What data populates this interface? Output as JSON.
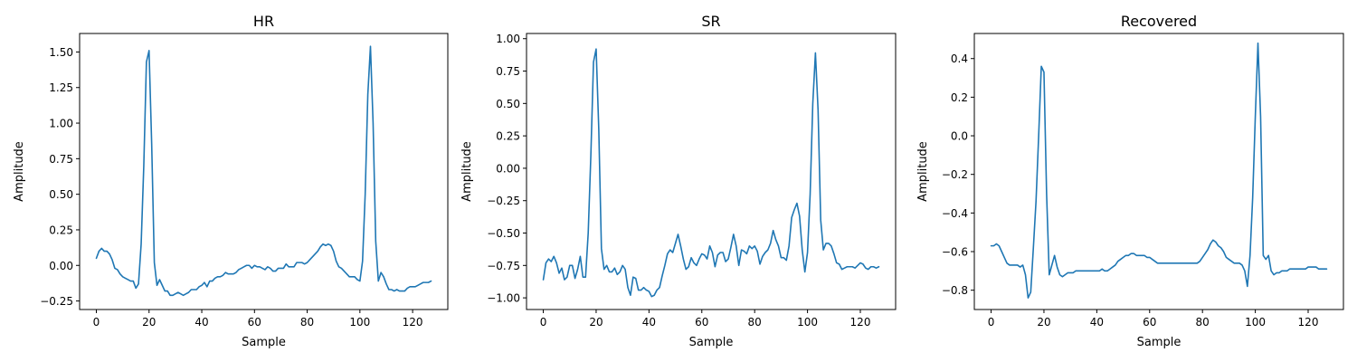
{
  "figure": {
    "background": "#ffffff",
    "line_color": "#1f77b4"
  },
  "chart_data": [
    {
      "type": "line",
      "title": "HR",
      "xlabel": "Sample",
      "ylabel": "Amplitude",
      "xlim": [
        -6.35,
        133.35
      ],
      "ylim": [
        -0.31,
        1.63
      ],
      "xticks": [
        0,
        20,
        40,
        60,
        80,
        100,
        120
      ],
      "xtick_labels": [
        "0",
        "20",
        "40",
        "60",
        "80",
        "100",
        "120"
      ],
      "yticks": [
        -0.25,
        0.0,
        0.25,
        0.5,
        0.75,
        1.0,
        1.25,
        1.5
      ],
      "ytick_labels": [
        "−0.25",
        "0.00",
        "0.25",
        "0.50",
        "0.75",
        "1.00",
        "1.25",
        "1.50"
      ],
      "grid": false,
      "series": [
        {
          "color": "#1f77b4",
          "x": [
            0,
            1,
            2,
            3,
            4,
            5,
            6,
            7,
            8,
            9,
            10,
            11,
            12,
            13,
            14,
            15,
            16,
            17,
            18,
            19,
            20,
            21,
            22,
            23,
            24,
            25,
            26,
            27,
            28,
            29,
            30,
            31,
            32,
            33,
            34,
            35,
            36,
            37,
            38,
            39,
            40,
            41,
            42,
            43,
            44,
            45,
            46,
            47,
            48,
            49,
            50,
            51,
            52,
            53,
            54,
            55,
            56,
            57,
            58,
            59,
            60,
            61,
            62,
            63,
            64,
            65,
            66,
            67,
            68,
            69,
            70,
            71,
            72,
            73,
            74,
            75,
            76,
            77,
            78,
            79,
            80,
            81,
            82,
            83,
            84,
            85,
            86,
            87,
            88,
            89,
            90,
            91,
            92,
            93,
            94,
            95,
            96,
            97,
            98,
            99,
            100,
            101,
            102,
            103,
            104,
            105,
            106,
            107,
            108,
            109,
            110,
            111,
            112,
            113,
            114,
            115,
            116,
            117,
            118,
            119,
            120,
            121,
            122,
            123,
            124,
            125,
            126,
            127
          ],
          "y": [
            0.05,
            0.1,
            0.12,
            0.1,
            0.1,
            0.08,
            0.04,
            -0.02,
            -0.03,
            -0.06,
            -0.08,
            -0.09,
            -0.1,
            -0.11,
            -0.11,
            -0.16,
            -0.13,
            0.15,
            0.7,
            1.43,
            1.51,
            0.85,
            0.02,
            -0.14,
            -0.1,
            -0.14,
            -0.18,
            -0.18,
            -0.21,
            -0.21,
            -0.2,
            -0.19,
            -0.2,
            -0.21,
            -0.2,
            -0.19,
            -0.17,
            -0.17,
            -0.17,
            -0.15,
            -0.14,
            -0.12,
            -0.15,
            -0.11,
            -0.11,
            -0.09,
            -0.08,
            -0.08,
            -0.07,
            -0.05,
            -0.06,
            -0.06,
            -0.06,
            -0.05,
            -0.03,
            -0.02,
            -0.01,
            0.0,
            0.0,
            -0.02,
            0.0,
            -0.01,
            -0.01,
            -0.02,
            -0.03,
            -0.01,
            -0.02,
            -0.04,
            -0.04,
            -0.02,
            -0.02,
            -0.02,
            0.01,
            -0.01,
            -0.01,
            -0.01,
            0.02,
            0.02,
            0.02,
            0.01,
            0.02,
            0.04,
            0.06,
            0.08,
            0.1,
            0.13,
            0.15,
            0.14,
            0.15,
            0.14,
            0.1,
            0.03,
            -0.01,
            -0.02,
            -0.04,
            -0.06,
            -0.08,
            -0.08,
            -0.08,
            -0.1,
            -0.11,
            0.03,
            0.5,
            1.2,
            1.54,
            1.0,
            0.17,
            -0.11,
            -0.05,
            -0.08,
            -0.13,
            -0.17,
            -0.17,
            -0.18,
            -0.17,
            -0.18,
            -0.18,
            -0.18,
            -0.16,
            -0.15,
            -0.15,
            -0.15,
            -0.14,
            -0.13,
            -0.12,
            -0.12,
            -0.12,
            -0.11
          ]
        }
      ]
    },
    {
      "type": "line",
      "title": "SR",
      "xlabel": "Sample",
      "ylabel": "Amplitude",
      "xlim": [
        -6.35,
        133.35
      ],
      "ylim": [
        -1.09,
        1.04
      ],
      "xticks": [
        0,
        20,
        40,
        60,
        80,
        100,
        120
      ],
      "xtick_labels": [
        "0",
        "20",
        "40",
        "60",
        "80",
        "100",
        "120"
      ],
      "yticks": [
        -1.0,
        -0.75,
        -0.5,
        -0.25,
        0.0,
        0.25,
        0.5,
        0.75,
        1.0
      ],
      "ytick_labels": [
        "−1.00",
        "−0.75",
        "−0.50",
        "−0.25",
        "0.00",
        "0.25",
        "0.50",
        "0.75",
        "1.00"
      ],
      "grid": false,
      "series": [
        {
          "color": "#1f77b4",
          "x": [
            0,
            1,
            2,
            3,
            4,
            5,
            6,
            7,
            8,
            9,
            10,
            11,
            12,
            13,
            14,
            15,
            16,
            17,
            18,
            19,
            20,
            21,
            22,
            23,
            24,
            25,
            26,
            27,
            28,
            29,
            30,
            31,
            32,
            33,
            34,
            35,
            36,
            37,
            38,
            39,
            40,
            41,
            42,
            43,
            44,
            45,
            46,
            47,
            48,
            49,
            50,
            51,
            52,
            53,
            54,
            55,
            56,
            57,
            58,
            59,
            60,
            61,
            62,
            63,
            64,
            65,
            66,
            67,
            68,
            69,
            70,
            71,
            72,
            73,
            74,
            75,
            76,
            77,
            78,
            79,
            80,
            81,
            82,
            83,
            84,
            85,
            86,
            87,
            88,
            89,
            90,
            91,
            92,
            93,
            94,
            95,
            96,
            97,
            98,
            99,
            100,
            101,
            102,
            103,
            104,
            105,
            106,
            107,
            108,
            109,
            110,
            111,
            112,
            113,
            114,
            115,
            116,
            117,
            118,
            119,
            120,
            121,
            122,
            123,
            124,
            125,
            126,
            127
          ],
          "y": [
            -0.86,
            -0.73,
            -0.7,
            -0.72,
            -0.68,
            -0.73,
            -0.81,
            -0.77,
            -0.86,
            -0.84,
            -0.75,
            -0.75,
            -0.85,
            -0.78,
            -0.68,
            -0.84,
            -0.84,
            -0.5,
            0.1,
            0.82,
            0.92,
            0.3,
            -0.62,
            -0.78,
            -0.75,
            -0.8,
            -0.8,
            -0.77,
            -0.82,
            -0.8,
            -0.75,
            -0.78,
            -0.92,
            -0.98,
            -0.84,
            -0.85,
            -0.94,
            -0.94,
            -0.92,
            -0.94,
            -0.95,
            -0.99,
            -0.98,
            -0.94,
            -0.92,
            -0.83,
            -0.75,
            -0.66,
            -0.63,
            -0.65,
            -0.58,
            -0.51,
            -0.6,
            -0.7,
            -0.78,
            -0.76,
            -0.69,
            -0.73,
            -0.75,
            -0.7,
            -0.66,
            -0.67,
            -0.7,
            -0.6,
            -0.65,
            -0.76,
            -0.67,
            -0.65,
            -0.65,
            -0.72,
            -0.7,
            -0.61,
            -0.51,
            -0.6,
            -0.75,
            -0.63,
            -0.64,
            -0.66,
            -0.6,
            -0.62,
            -0.6,
            -0.64,
            -0.74,
            -0.68,
            -0.65,
            -0.63,
            -0.58,
            -0.48,
            -0.55,
            -0.6,
            -0.69,
            -0.69,
            -0.71,
            -0.6,
            -0.38,
            -0.32,
            -0.27,
            -0.37,
            -0.63,
            -0.8,
            -0.65,
            -0.2,
            0.5,
            0.89,
            0.45,
            -0.4,
            -0.63,
            -0.58,
            -0.58,
            -0.6,
            -0.66,
            -0.73,
            -0.74,
            -0.78,
            -0.77,
            -0.76,
            -0.76,
            -0.76,
            -0.77,
            -0.75,
            -0.73,
            -0.74,
            -0.77,
            -0.78,
            -0.76,
            -0.76,
            -0.77,
            -0.76
          ]
        }
      ]
    },
    {
      "type": "line",
      "title": "Recovered",
      "xlabel": "Sample",
      "ylabel": "Amplitude",
      "xlim": [
        -6.35,
        133.35
      ],
      "ylim": [
        -0.9,
        0.53
      ],
      "xticks": [
        0,
        20,
        40,
        60,
        80,
        100,
        120
      ],
      "xtick_labels": [
        "0",
        "20",
        "40",
        "60",
        "80",
        "100",
        "120"
      ],
      "yticks": [
        -0.8,
        -0.6,
        -0.4,
        -0.2,
        0.0,
        0.2,
        0.4
      ],
      "ytick_labels": [
        "−0.8",
        "−0.6",
        "−0.4",
        "−0.2",
        "0.0",
        "0.2",
        "0.4"
      ],
      "grid": false,
      "series": [
        {
          "color": "#1f77b4",
          "x": [
            0,
            1,
            2,
            3,
            4,
            5,
            6,
            7,
            8,
            9,
            10,
            11,
            12,
            13,
            14,
            15,
            16,
            17,
            18,
            19,
            20,
            21,
            22,
            23,
            24,
            25,
            26,
            27,
            28,
            29,
            30,
            31,
            32,
            33,
            34,
            35,
            36,
            37,
            38,
            39,
            40,
            41,
            42,
            43,
            44,
            45,
            46,
            47,
            48,
            49,
            50,
            51,
            52,
            53,
            54,
            55,
            56,
            57,
            58,
            59,
            60,
            61,
            62,
            63,
            64,
            65,
            66,
            67,
            68,
            69,
            70,
            71,
            72,
            73,
            74,
            75,
            76,
            77,
            78,
            79,
            80,
            81,
            82,
            83,
            84,
            85,
            86,
            87,
            88,
            89,
            90,
            91,
            92,
            93,
            94,
            95,
            96,
            97,
            98,
            99,
            100,
            101,
            102,
            103,
            104,
            105,
            106,
            107,
            108,
            109,
            110,
            111,
            112,
            113,
            114,
            115,
            116,
            117,
            118,
            119,
            120,
            121,
            122,
            123,
            124,
            125,
            126,
            127
          ],
          "y": [
            -0.57,
            -0.57,
            -0.56,
            -0.57,
            -0.6,
            -0.63,
            -0.66,
            -0.67,
            -0.67,
            -0.67,
            -0.67,
            -0.68,
            -0.67,
            -0.72,
            -0.84,
            -0.81,
            -0.58,
            -0.34,
            0.0,
            0.36,
            0.33,
            -0.3,
            -0.72,
            -0.67,
            -0.62,
            -0.68,
            -0.72,
            -0.73,
            -0.72,
            -0.71,
            -0.71,
            -0.71,
            -0.7,
            -0.7,
            -0.7,
            -0.7,
            -0.7,
            -0.7,
            -0.7,
            -0.7,
            -0.7,
            -0.7,
            -0.69,
            -0.7,
            -0.7,
            -0.69,
            -0.68,
            -0.67,
            -0.65,
            -0.64,
            -0.63,
            -0.62,
            -0.62,
            -0.61,
            -0.61,
            -0.62,
            -0.62,
            -0.62,
            -0.62,
            -0.63,
            -0.63,
            -0.64,
            -0.65,
            -0.66,
            -0.66,
            -0.66,
            -0.66,
            -0.66,
            -0.66,
            -0.66,
            -0.66,
            -0.66,
            -0.66,
            -0.66,
            -0.66,
            -0.66,
            -0.66,
            -0.66,
            -0.66,
            -0.65,
            -0.63,
            -0.61,
            -0.59,
            -0.56,
            -0.54,
            -0.55,
            -0.57,
            -0.58,
            -0.6,
            -0.63,
            -0.64,
            -0.65,
            -0.66,
            -0.66,
            -0.66,
            -0.67,
            -0.7,
            -0.78,
            -0.62,
            -0.32,
            0.1,
            0.48,
            0.1,
            -0.62,
            -0.64,
            -0.62,
            -0.7,
            -0.72,
            -0.71,
            -0.71,
            -0.7,
            -0.7,
            -0.7,
            -0.69,
            -0.69,
            -0.69,
            -0.69,
            -0.69,
            -0.69,
            -0.69,
            -0.68,
            -0.68,
            -0.68,
            -0.68,
            -0.69,
            -0.69,
            -0.69,
            -0.69
          ]
        }
      ]
    }
  ]
}
